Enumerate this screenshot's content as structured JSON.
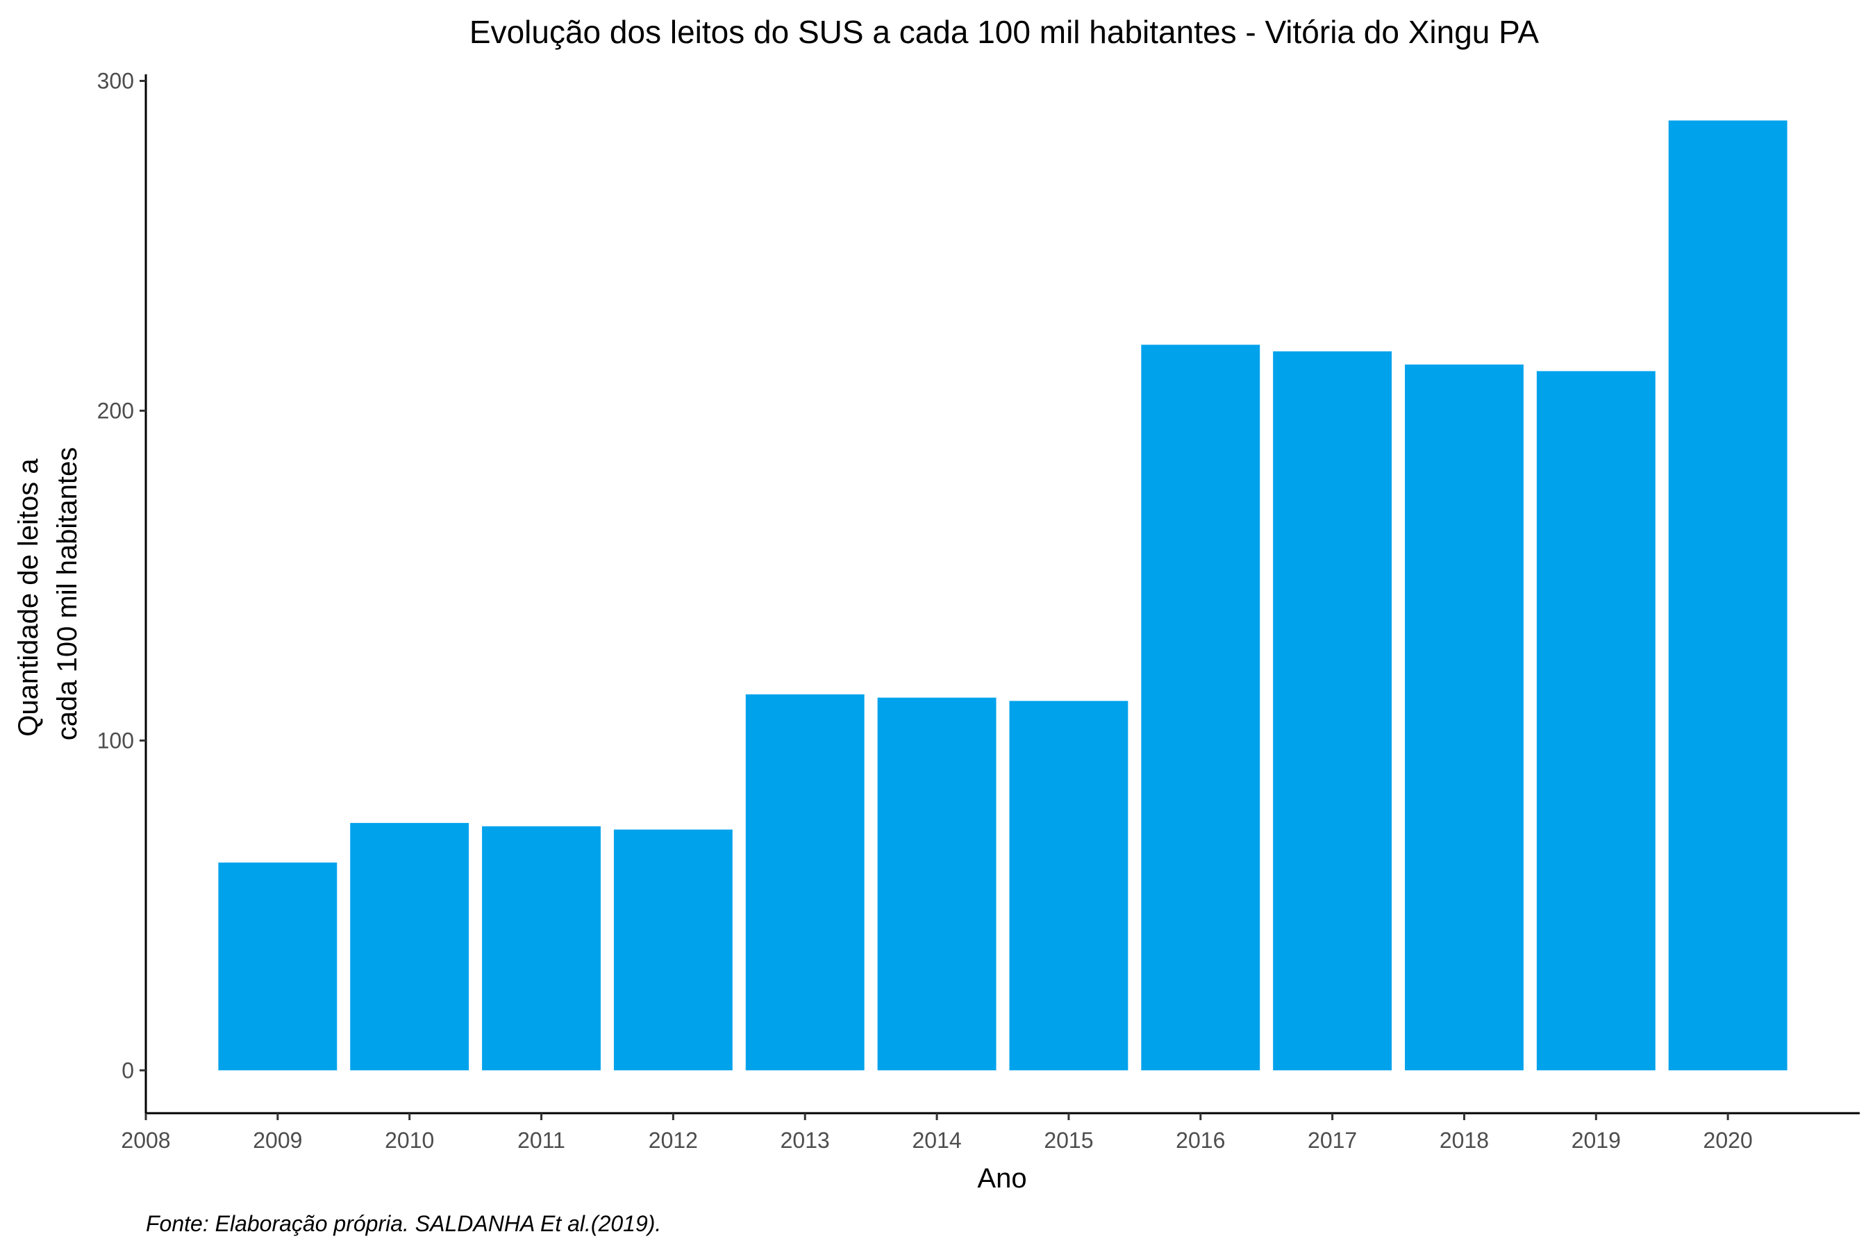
{
  "chart_data": {
    "type": "bar",
    "title": "Evolução dos leitos do SUS a cada 100 mil habitantes -  Vitória do Xingu PA",
    "xlabel": "Ano",
    "ylabel_lines": [
      "Quantidade de leitos a",
      "cada 100 mil habitantes"
    ],
    "caption": "Fonte: Elaboração própria. SALDANHA Et al.(2019).",
    "x": [
      2009,
      2010,
      2011,
      2012,
      2013,
      2014,
      2015,
      2016,
      2017,
      2018,
      2019,
      2020
    ],
    "values": [
      63,
      75,
      74,
      73,
      114,
      113,
      112,
      220,
      218,
      214,
      212,
      288
    ],
    "x_ticks": [
      "2008",
      "2009",
      "2010",
      "2011",
      "2012",
      "2013",
      "2014",
      "2015",
      "2016",
      "2017",
      "2018",
      "2019",
      "2020"
    ],
    "y_ticks": [
      "0",
      "100",
      "200",
      "300"
    ],
    "xlim": [
      2008,
      2021
    ],
    "ylim": [
      -13,
      302
    ],
    "bar_color": "#00A2EC",
    "grid": false,
    "legend": "none"
  }
}
